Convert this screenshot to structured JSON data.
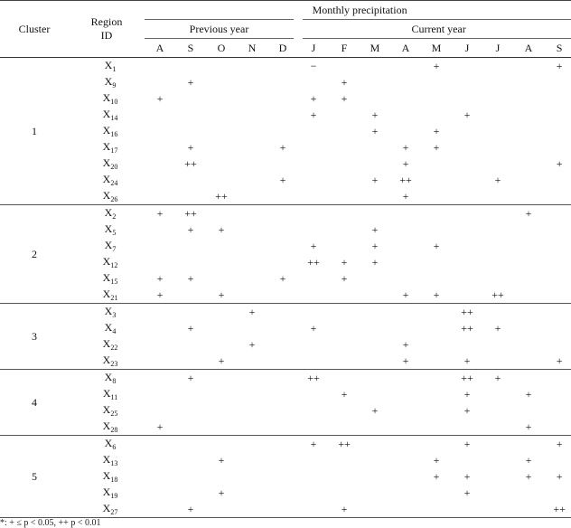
{
  "header": {
    "cluster_label": "Cluster",
    "region_label": "Region ID",
    "monthly_label": "Monthly precipitation",
    "previous_label": "Previous year",
    "current_label": "Current year",
    "months": [
      "A",
      "S",
      "O",
      "N",
      "D",
      "J",
      "F",
      "M",
      "A",
      "M",
      "J",
      "J",
      "A",
      "S"
    ]
  },
  "clusters": [
    {
      "id": "1",
      "rows": [
        {
          "prefix": "X",
          "sub": "1",
          "cells": [
            "",
            "",
            "",
            "",
            "",
            "−",
            "",
            "",
            "",
            "+",
            "",
            "",
            "",
            "+"
          ]
        },
        {
          "prefix": "X",
          "sub": "9",
          "cells": [
            "",
            "+",
            "",
            "",
            "",
            "",
            "+",
            "",
            "",
            "",
            "",
            "",
            "",
            ""
          ]
        },
        {
          "prefix": "X",
          "sub": "10",
          "cells": [
            "+",
            "",
            "",
            "",
            "",
            "+",
            "+",
            "",
            "",
            "",
            "",
            "",
            "",
            ""
          ]
        },
        {
          "prefix": "X",
          "sub": "14",
          "cells": [
            "",
            "",
            "",
            "",
            "",
            "+",
            "",
            "+",
            "",
            "",
            "+",
            "",
            "",
            ""
          ]
        },
        {
          "prefix": "X",
          "sub": "16",
          "cells": [
            "",
            "",
            "",
            "",
            "",
            "",
            "",
            "+",
            "",
            "+",
            "",
            "",
            "",
            ""
          ]
        },
        {
          "prefix": "X",
          "sub": "17",
          "cells": [
            "",
            "+",
            "",
            "",
            "+",
            "",
            "",
            "",
            "+",
            "+",
            "",
            "",
            "",
            ""
          ]
        },
        {
          "prefix": "X",
          "sub": "20",
          "cells": [
            "",
            "++",
            "",
            "",
            "",
            "",
            "",
            "",
            "+",
            "",
            "",
            "",
            "",
            "+"
          ]
        },
        {
          "prefix": "X",
          "sub": "24",
          "cells": [
            "",
            "",
            "",
            "",
            "+",
            "",
            "",
            "+",
            "++",
            "",
            "",
            "+",
            "",
            ""
          ]
        },
        {
          "prefix": "X",
          "sub": "26",
          "cells": [
            "",
            "",
            "++",
            "",
            "",
            "",
            "",
            "",
            "+",
            "",
            "",
            "",
            "",
            ""
          ]
        }
      ]
    },
    {
      "id": "2",
      "rows": [
        {
          "prefix": "X",
          "sub": "2",
          "cells": [
            "+",
            "++",
            "",
            "",
            "",
            "",
            "",
            "",
            "",
            "",
            "",
            "",
            "+",
            ""
          ]
        },
        {
          "prefix": "X",
          "sub": "5",
          "cells": [
            "",
            "+",
            "+",
            "",
            "",
            "",
            "",
            "+",
            "",
            "",
            "",
            "",
            "",
            ""
          ]
        },
        {
          "prefix": "X",
          "sub": "7",
          "cells": [
            "",
            "",
            "",
            "",
            "",
            "+",
            "",
            "+",
            "",
            "+",
            "",
            "",
            "",
            ""
          ]
        },
        {
          "prefix": "X",
          "sub": "12",
          "cells": [
            "",
            "",
            "",
            "",
            "",
            "++",
            "+",
            "+",
            "",
            "",
            "",
            "",
            "",
            ""
          ]
        },
        {
          "prefix": "X",
          "sub": "15",
          "cells": [
            "+",
            "+",
            "",
            "",
            "+",
            "",
            "+",
            "",
            "",
            "",
            "",
            "",
            "",
            ""
          ]
        },
        {
          "prefix": "X",
          "sub": "21",
          "cells": [
            "+",
            "",
            "+",
            "",
            "",
            "",
            "",
            "",
            "+",
            "+",
            "",
            "++",
            "",
            ""
          ]
        }
      ]
    },
    {
      "id": "3",
      "rows": [
        {
          "prefix": "X",
          "sub": "3",
          "cells": [
            "",
            "",
            "",
            "+",
            "",
            "",
            "",
            "",
            "",
            "",
            "++",
            "",
            "",
            ""
          ]
        },
        {
          "prefix": "X",
          "sub": "4",
          "cells": [
            "",
            "+",
            "",
            "",
            "",
            "+",
            "",
            "",
            "",
            "",
            "++",
            "+",
            "",
            ""
          ]
        },
        {
          "prefix": "X",
          "sub": "22",
          "cells": [
            "",
            "",
            "",
            "+",
            "",
            "",
            "",
            "",
            "+",
            "",
            "",
            "",
            "",
            ""
          ]
        },
        {
          "prefix": "X",
          "sub": "23",
          "cells": [
            "",
            "",
            "+",
            "",
            "",
            "",
            "",
            "",
            "+",
            "",
            "+",
            "",
            "",
            "+"
          ]
        }
      ]
    },
    {
      "id": "4",
      "rows": [
        {
          "prefix": "X",
          "sub": "8",
          "cells": [
            "",
            "+",
            "",
            "",
            "",
            "++",
            "",
            "",
            "",
            "",
            "++",
            "+",
            "",
            ""
          ]
        },
        {
          "prefix": "X",
          "sub": "11",
          "cells": [
            "",
            "",
            "",
            "",
            "",
            "",
            "+",
            "",
            "",
            "",
            "+",
            "",
            "+",
            ""
          ]
        },
        {
          "prefix": "X",
          "sub": "25",
          "cells": [
            "",
            "",
            "",
            "",
            "",
            "",
            "",
            "+",
            "",
            "",
            "+",
            "",
            "",
            ""
          ]
        },
        {
          "prefix": "X",
          "sub": "28",
          "cells": [
            "+",
            "",
            "",
            "",
            "",
            "",
            "",
            "",
            "",
            "",
            "",
            "",
            "+",
            ""
          ]
        }
      ]
    },
    {
      "id": "5",
      "rows": [
        {
          "prefix": "X",
          "sub": "6",
          "cells": [
            "",
            "",
            "",
            "",
            "",
            "+",
            "++",
            "",
            "",
            "",
            "+",
            "",
            "",
            "+"
          ]
        },
        {
          "prefix": "X",
          "sub": "13",
          "cells": [
            "",
            "",
            "+",
            "",
            "",
            "",
            "",
            "",
            "",
            "+",
            "",
            "",
            "+",
            ""
          ]
        },
        {
          "prefix": "X",
          "sub": "18",
          "cells": [
            "",
            "",
            "",
            "",
            "",
            "",
            "",
            "",
            "",
            "+",
            "+",
            "",
            "+",
            "+"
          ]
        },
        {
          "prefix": "X",
          "sub": "19",
          "cells": [
            "",
            "",
            "+",
            "",
            "",
            "",
            "",
            "",
            "",
            "",
            "+",
            "",
            "",
            ""
          ]
        },
        {
          "prefix": "X",
          "sub": "27",
          "cells": [
            "",
            "+",
            "",
            "",
            "",
            "",
            "+",
            "",
            "",
            "",
            "",
            "",
            "",
            "++"
          ]
        }
      ]
    }
  ],
  "footnote": "*: + ≤ p < 0.05, ++ p < 0.01"
}
